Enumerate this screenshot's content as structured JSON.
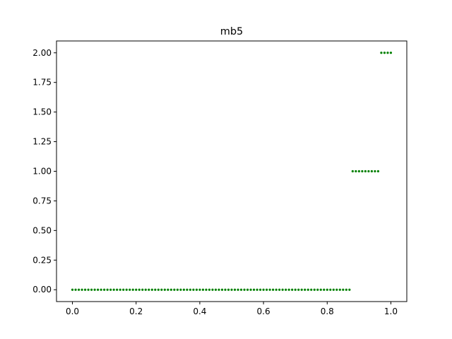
{
  "chart_data": {
    "type": "scatter",
    "title": "mb5",
    "xlabel": "",
    "ylabel": "",
    "xlim": [
      -0.05,
      1.05
    ],
    "ylim": [
      -0.1,
      2.1
    ],
    "x_ticks": [
      "0.0",
      "0.2",
      "0.4",
      "0.6",
      "0.8",
      "1.0"
    ],
    "y_ticks": [
      "0.00",
      "0.25",
      "0.50",
      "0.75",
      "1.00",
      "1.25",
      "1.50",
      "1.75",
      "2.00"
    ],
    "grid": false,
    "marker_color": "#008000",
    "series": [
      {
        "points": [
          [
            0.0,
            0
          ],
          [
            0.01,
            0
          ],
          [
            0.02,
            0
          ],
          [
            0.03,
            0
          ],
          [
            0.04,
            0
          ],
          [
            0.05,
            0
          ],
          [
            0.06,
            0
          ],
          [
            0.07,
            0
          ],
          [
            0.08,
            0
          ],
          [
            0.09,
            0
          ],
          [
            0.1,
            0
          ],
          [
            0.11,
            0
          ],
          [
            0.12,
            0
          ],
          [
            0.13,
            0
          ],
          [
            0.14,
            0
          ],
          [
            0.15,
            0
          ],
          [
            0.16,
            0
          ],
          [
            0.17,
            0
          ],
          [
            0.18,
            0
          ],
          [
            0.19,
            0
          ],
          [
            0.2,
            0
          ],
          [
            0.21,
            0
          ],
          [
            0.22,
            0
          ],
          [
            0.23,
            0
          ],
          [
            0.24,
            0
          ],
          [
            0.25,
            0
          ],
          [
            0.26,
            0
          ],
          [
            0.27,
            0
          ],
          [
            0.28,
            0
          ],
          [
            0.29,
            0
          ],
          [
            0.3,
            0
          ],
          [
            0.31,
            0
          ],
          [
            0.32,
            0
          ],
          [
            0.33,
            0
          ],
          [
            0.34,
            0
          ],
          [
            0.35,
            0
          ],
          [
            0.36,
            0
          ],
          [
            0.37,
            0
          ],
          [
            0.38,
            0
          ],
          [
            0.39,
            0
          ],
          [
            0.4,
            0
          ],
          [
            0.41,
            0
          ],
          [
            0.42,
            0
          ],
          [
            0.43,
            0
          ],
          [
            0.44,
            0
          ],
          [
            0.45,
            0
          ],
          [
            0.46,
            0
          ],
          [
            0.47,
            0
          ],
          [
            0.48,
            0
          ],
          [
            0.49,
            0
          ],
          [
            0.5,
            0
          ],
          [
            0.51,
            0
          ],
          [
            0.52,
            0
          ],
          [
            0.53,
            0
          ],
          [
            0.54,
            0
          ],
          [
            0.55,
            0
          ],
          [
            0.56,
            0
          ],
          [
            0.57,
            0
          ],
          [
            0.58,
            0
          ],
          [
            0.59,
            0
          ],
          [
            0.6,
            0
          ],
          [
            0.61,
            0
          ],
          [
            0.62,
            0
          ],
          [
            0.63,
            0
          ],
          [
            0.64,
            0
          ],
          [
            0.65,
            0
          ],
          [
            0.66,
            0
          ],
          [
            0.67,
            0
          ],
          [
            0.68,
            0
          ],
          [
            0.69,
            0
          ],
          [
            0.7,
            0
          ],
          [
            0.71,
            0
          ],
          [
            0.72,
            0
          ],
          [
            0.73,
            0
          ],
          [
            0.74,
            0
          ],
          [
            0.75,
            0
          ],
          [
            0.76,
            0
          ],
          [
            0.77,
            0
          ],
          [
            0.78,
            0
          ],
          [
            0.79,
            0
          ],
          [
            0.8,
            0
          ],
          [
            0.81,
            0
          ],
          [
            0.82,
            0
          ],
          [
            0.83,
            0
          ],
          [
            0.84,
            0
          ],
          [
            0.85,
            0
          ],
          [
            0.86,
            0
          ],
          [
            0.87,
            0
          ],
          [
            0.88,
            1
          ],
          [
            0.89,
            1
          ],
          [
            0.9,
            1
          ],
          [
            0.91,
            1
          ],
          [
            0.92,
            1
          ],
          [
            0.93,
            1
          ],
          [
            0.94,
            1
          ],
          [
            0.95,
            1
          ],
          [
            0.96,
            1
          ],
          [
            0.97,
            2
          ],
          [
            0.98,
            2
          ],
          [
            0.99,
            2
          ],
          [
            1.0,
            2
          ]
        ]
      }
    ]
  }
}
